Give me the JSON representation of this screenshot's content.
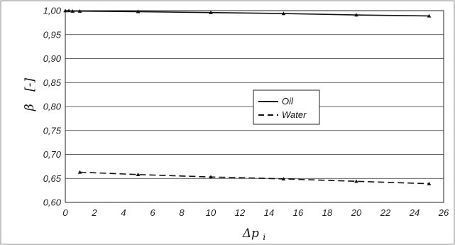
{
  "chart_data": {
    "type": "line",
    "title": "",
    "xlabel": "Δp",
    "xlabel_subscript": "i",
    "ylabel": "β",
    "ylabel_unit": "[-]",
    "xlim": [
      0,
      26
    ],
    "ylim": [
      0.6,
      1.0
    ],
    "x_ticks": [
      "0",
      "2",
      "4",
      "6",
      "8",
      "10",
      "12",
      "14",
      "16",
      "18",
      "20",
      "22",
      "24",
      "26"
    ],
    "y_ticks": [
      "0,60",
      "0,65",
      "0,70",
      "0,75",
      "0,80",
      "0,85",
      "0,90",
      "0,95",
      "1,00"
    ],
    "grid": true,
    "legend_position": "center-right",
    "series": [
      {
        "name": "Oil",
        "line_style": "solid",
        "color": "#111111",
        "x": [
          0,
          0.25,
          0.5,
          1,
          5,
          10,
          15,
          20,
          25
        ],
        "y": [
          1.0,
          1.0,
          0.999,
          0.999,
          0.998,
          0.996,
          0.994,
          0.991,
          0.989
        ]
      },
      {
        "name": "Water",
        "line_style": "dashed",
        "color": "#111111",
        "x": [
          1,
          5,
          10,
          15,
          20,
          25
        ],
        "y": [
          0.663,
          0.658,
          0.653,
          0.649,
          0.644,
          0.639
        ]
      }
    ]
  }
}
